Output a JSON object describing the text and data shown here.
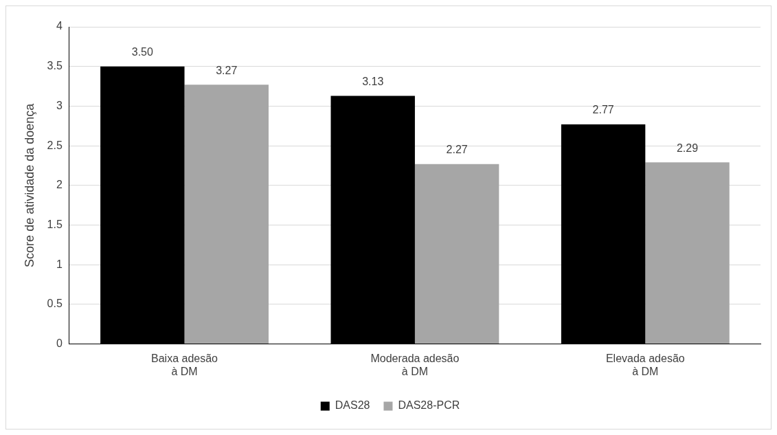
{
  "chart_data": {
    "type": "bar",
    "ylabel": "Score de atividade da doença",
    "categories": [
      "Baixa adesão\nà DM",
      "Moderada adesão\nà DM",
      "Elevada adesão\nà DM"
    ],
    "series": [
      {
        "name": "DAS28",
        "color": "#000000",
        "values": [
          3.5,
          3.13,
          2.77
        ],
        "value_labels": [
          "3.50",
          "3.13",
          "2.77"
        ]
      },
      {
        "name": "DAS28-PCR",
        "color": "#a6a6a6",
        "values": [
          3.27,
          2.27,
          2.29
        ],
        "value_labels": [
          "3.27",
          "2.27",
          "2.29"
        ]
      }
    ],
    "ylim": [
      0,
      4
    ],
    "yticks": [
      0,
      0.5,
      1,
      1.5,
      2,
      2.5,
      3,
      3.5,
      4
    ],
    "grid": "y",
    "legend": "bottom"
  }
}
